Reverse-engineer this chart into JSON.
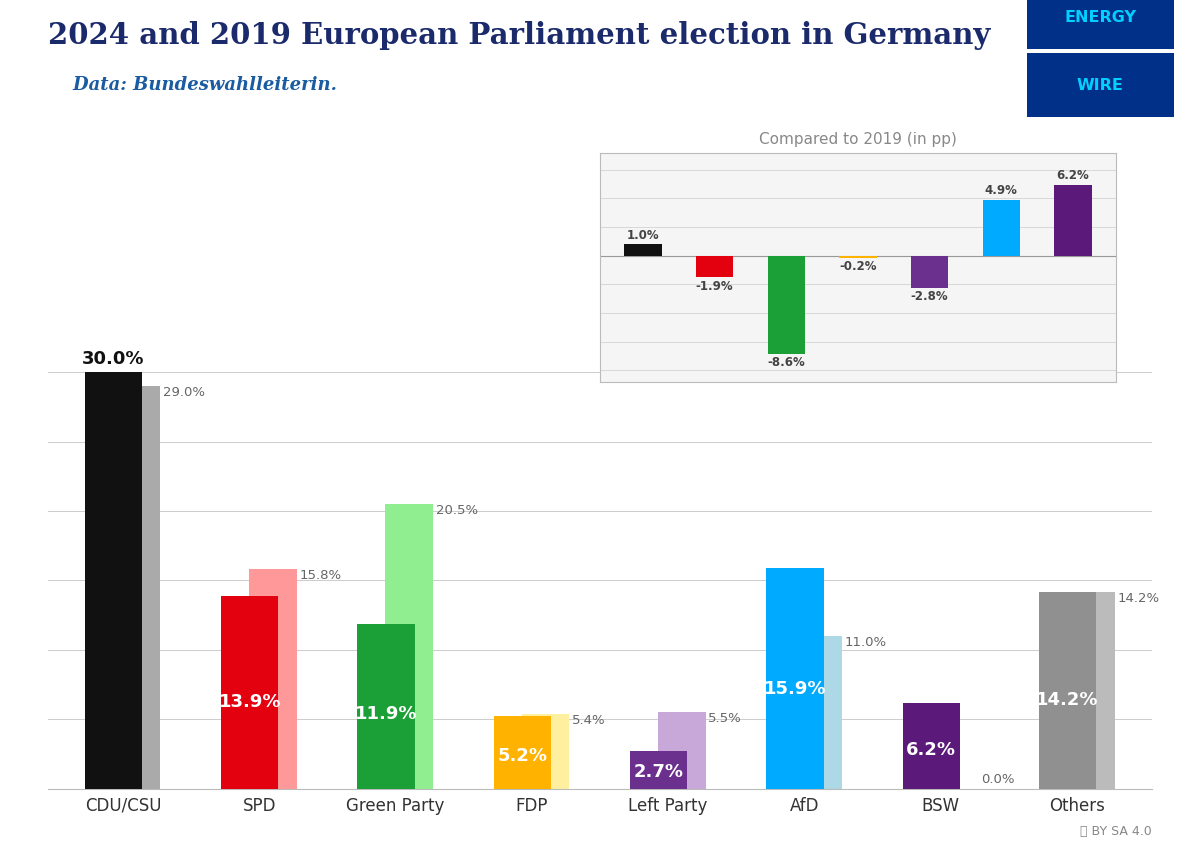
{
  "title": "2024 and 2019 European Parliament election in Germany",
  "subtitle": "    Data: Bundeswahlleiterin.",
  "parties": [
    "CDU/CSU",
    "SPD",
    "Green Party",
    "FDP",
    "Left Party",
    "AfD",
    "BSW",
    "Others"
  ],
  "values_2024": [
    30.0,
    13.9,
    11.9,
    5.2,
    2.7,
    15.9,
    6.2,
    14.2
  ],
  "values_2019": [
    29.0,
    15.8,
    20.5,
    5.4,
    5.5,
    11.0,
    0.0,
    14.2
  ],
  "colors_2024": [
    "#111111",
    "#E3000F",
    "#1AA037",
    "#FFB300",
    "#6B2F8E",
    "#00AAFF",
    "#5B1A7A",
    "#909090"
  ],
  "colors_2019": [
    "#AAAAAA",
    "#FF9999",
    "#90EE90",
    "#FFF0A0",
    "#C8A8D8",
    "#ADD8E6",
    "#AAAAAA",
    "#BBBBBB"
  ],
  "diff_values": [
    1.0,
    -1.9,
    -8.6,
    -0.2,
    -2.8,
    4.9,
    6.2
  ],
  "diff_colors": [
    "#111111",
    "#E3000F",
    "#1AA037",
    "#FFB300",
    "#6B2F8E",
    "#00AAFF",
    "#5B1A7A"
  ],
  "bg_color": "#FFFFFF",
  "title_color": "#1B2A6B",
  "subtitle_color": "#1B5CA0",
  "inset_bg": "#F5F5F5"
}
